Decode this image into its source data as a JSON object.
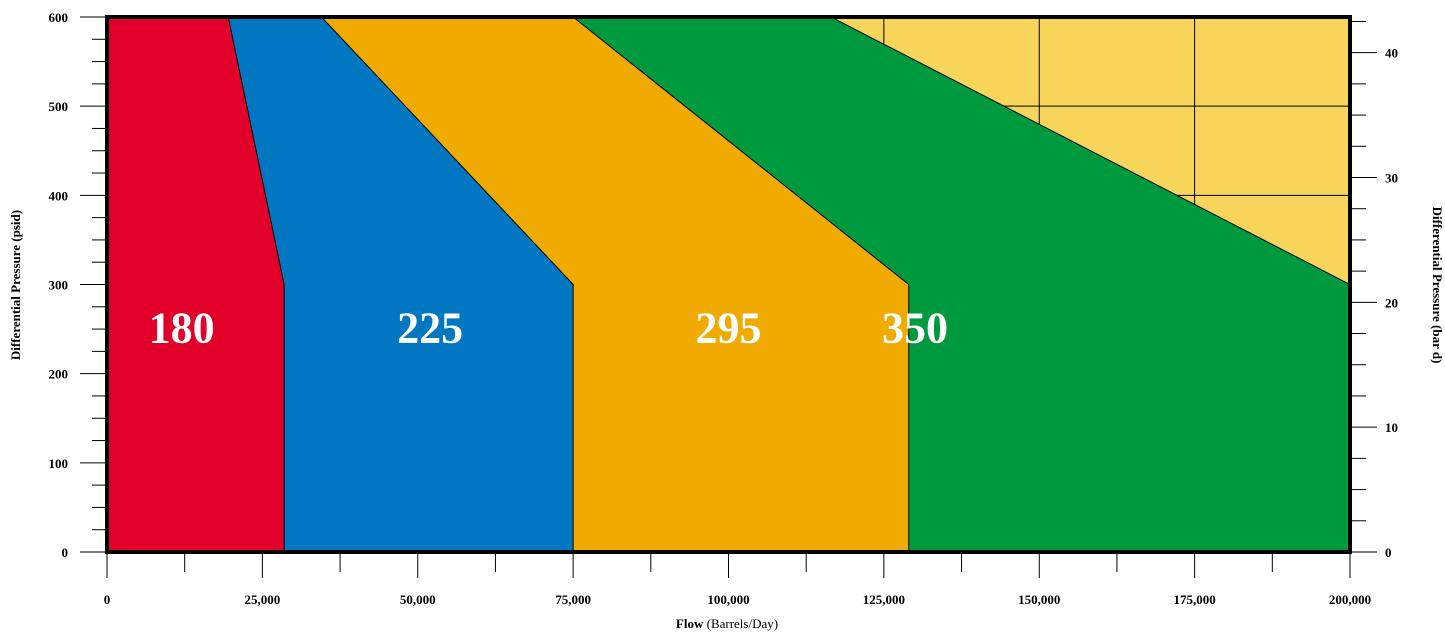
{
  "chart_data": {
    "type": "area",
    "title": "",
    "x_axis": {
      "label_bold": "Flow",
      "label_rest": " (Barrels/Day)",
      "range": [
        0,
        200000
      ],
      "ticks": [
        0,
        25000,
        50000,
        75000,
        100000,
        125000,
        150000,
        175000,
        200000
      ],
      "tick_labels": [
        "0",
        "25,000",
        "50,000",
        "75,000",
        "100,000",
        "125,000",
        "150,000",
        "175,000",
        "200,000"
      ],
      "minor_step": 12500
    },
    "y_axis_left": {
      "label": "Differential Pressure (psid)",
      "range": [
        0,
        600
      ],
      "ticks": [
        0,
        100,
        200,
        300,
        400,
        500,
        600
      ],
      "tick_labels": [
        "0",
        "100",
        "200",
        "300",
        "400",
        "500",
        "600"
      ],
      "minor_step": 25
    },
    "y_axis_right": {
      "label": "Differential Pressure (bar d)",
      "range": [
        0,
        42.857
      ],
      "ticks": [
        0,
        10,
        20,
        30,
        40
      ],
      "tick_labels": [
        "0",
        "10",
        "20",
        "30",
        "40"
      ],
      "minor_step": 2.5
    },
    "grid": true,
    "background_color": "#f7d55a",
    "regions": [
      {
        "name": "350",
        "color": "#009a3e",
        "boundary": [
          [
            0,
            0
          ],
          [
            0,
            600
          ],
          [
            116500,
            600
          ],
          [
            200000,
            300
          ],
          [
            200000,
            0
          ]
        ],
        "label_at": [
          130000,
          235
        ]
      },
      {
        "name": "295",
        "color": "#f0aa00",
        "boundary": [
          [
            0,
            0
          ],
          [
            0,
            600
          ],
          [
            75000,
            600
          ],
          [
            129000,
            300
          ],
          [
            129000,
            0
          ]
        ],
        "label_at": [
          100000,
          235
        ]
      },
      {
        "name": "225",
        "color": "#0077c0",
        "boundary": [
          [
            0,
            0
          ],
          [
            0,
            600
          ],
          [
            34500,
            600
          ],
          [
            75000,
            300
          ],
          [
            75000,
            0
          ]
        ],
        "label_at": [
          52000,
          235
        ]
      },
      {
        "name": "180",
        "color": "#e0002a",
        "boundary": [
          [
            0,
            0
          ],
          [
            0,
            600
          ],
          [
            19500,
            600
          ],
          [
            28500,
            300
          ],
          [
            28500,
            0
          ]
        ],
        "label_at": [
          12000,
          235
        ]
      }
    ]
  }
}
